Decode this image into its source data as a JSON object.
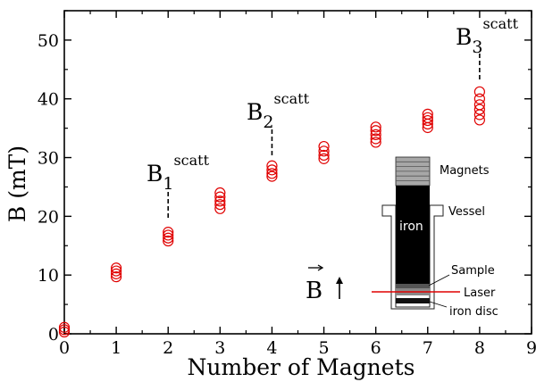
{
  "chart_data": {
    "type": "scatter",
    "xlabel": "Number of Magnets",
    "ylabel": "B (mT)",
    "xlim": [
      0,
      9
    ],
    "ylim": [
      0,
      55
    ],
    "xticks": [
      "0",
      "1",
      "2",
      "3",
      "4",
      "5",
      "6",
      "7",
      "8",
      "9"
    ],
    "yticks": [
      "0",
      "10",
      "20",
      "30",
      "40",
      "50"
    ],
    "marker_color": "#e00000",
    "marker": "open-circle",
    "points": [
      {
        "x": 0,
        "y": 0.3
      },
      {
        "x": 0,
        "y": 0.7
      },
      {
        "x": 0,
        "y": 1.1
      },
      {
        "x": 1,
        "y": 9.7
      },
      {
        "x": 1,
        "y": 10.2
      },
      {
        "x": 1,
        "y": 10.7
      },
      {
        "x": 1,
        "y": 11.2
      },
      {
        "x": 2,
        "y": 15.8
      },
      {
        "x": 2,
        "y": 16.3
      },
      {
        "x": 2,
        "y": 16.8
      },
      {
        "x": 2,
        "y": 17.3
      },
      {
        "x": 3,
        "y": 21.3
      },
      {
        "x": 3,
        "y": 22.0
      },
      {
        "x": 3,
        "y": 22.6
      },
      {
        "x": 3,
        "y": 23.3
      },
      {
        "x": 3,
        "y": 24.0
      },
      {
        "x": 4,
        "y": 26.8
      },
      {
        "x": 4,
        "y": 27.3
      },
      {
        "x": 4,
        "y": 27.9
      },
      {
        "x": 4,
        "y": 28.6
      },
      {
        "x": 5,
        "y": 29.8
      },
      {
        "x": 5,
        "y": 30.4
      },
      {
        "x": 5,
        "y": 31.1
      },
      {
        "x": 5,
        "y": 31.9
      },
      {
        "x": 6,
        "y": 32.6
      },
      {
        "x": 6,
        "y": 33.2
      },
      {
        "x": 6,
        "y": 33.9
      },
      {
        "x": 6,
        "y": 34.6
      },
      {
        "x": 6,
        "y": 35.2
      },
      {
        "x": 7,
        "y": 35.1
      },
      {
        "x": 7,
        "y": 35.7
      },
      {
        "x": 7,
        "y": 36.3
      },
      {
        "x": 7,
        "y": 36.8
      },
      {
        "x": 7,
        "y": 37.4
      },
      {
        "x": 8,
        "y": 36.4
      },
      {
        "x": 8,
        "y": 37.3
      },
      {
        "x": 8,
        "y": 38.2
      },
      {
        "x": 8,
        "y": 39.0
      },
      {
        "x": 8,
        "y": 40.0
      },
      {
        "x": 8,
        "y": 41.2
      }
    ],
    "annotations": [
      {
        "base": "B",
        "sub": "1",
        "sup": "scatt",
        "x": 2
      },
      {
        "base": "B",
        "sub": "2",
        "sup": "scatt",
        "x": 4
      },
      {
        "base": "B",
        "sub": "3",
        "sup": "scatt",
        "x": 8
      }
    ],
    "inset": {
      "labels": {
        "magnets": "Magnets",
        "vessel": "Vessel",
        "iron": "iron",
        "sample": "Sample",
        "laser": "Laser",
        "iron_disc": "iron disc"
      },
      "field_label": "B",
      "laser_color": "#e00000"
    }
  }
}
